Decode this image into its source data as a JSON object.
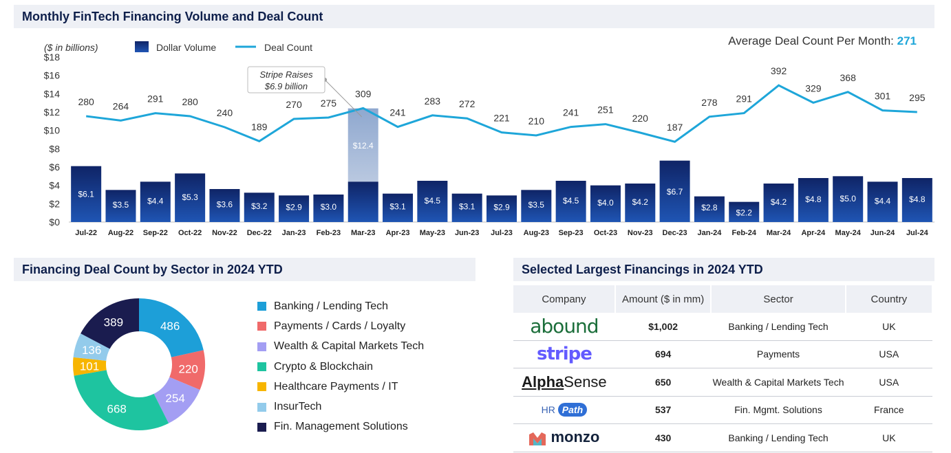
{
  "header_top": "Monthly FinTech Financing Volume and Deal Count",
  "header_left": "Financing Deal Count by Sector in 2024 YTD",
  "header_right": "Selected Largest Financings in 2024 YTD",
  "avg_label": "Average Deal Count Per Month: ",
  "avg_value": "271",
  "colors": {
    "bar_dark": "#0f2466",
    "bar_light": "#1f55b4",
    "line": "#1ea6d9",
    "highlight_bar": "#a3b9d8"
  },
  "chart_data": [
    {
      "type": "bar+line",
      "title": "",
      "y_unit_label": "($ in billions)",
      "legend": [
        "Dollar Volume",
        "Deal Count"
      ],
      "legend_position": "top-left",
      "categories": [
        "Jul-22",
        "Aug-22",
        "Sep-22",
        "Oct-22",
        "Nov-22",
        "Dec-22",
        "Jan-23",
        "Feb-23",
        "Mar-23",
        "Apr-23",
        "May-23",
        "Jun-23",
        "Jul-23",
        "Aug-23",
        "Sep-23",
        "Oct-23",
        "Nov-23",
        "Dec-23",
        "Jan-24",
        "Feb-24",
        "Mar-24",
        "Apr-24",
        "May-24",
        "Jun-24",
        "Jul-24"
      ],
      "series": [
        {
          "name": "Dollar Volume",
          "kind": "bar",
          "values": [
            6.1,
            3.5,
            4.4,
            5.3,
            3.6,
            3.2,
            2.9,
            3.0,
            12.4,
            3.1,
            4.5,
            3.1,
            2.9,
            3.5,
            4.5,
            4.0,
            4.2,
            6.7,
            2.8,
            2.2,
            4.2,
            4.8,
            5.0,
            4.4,
            4.8
          ],
          "labels": [
            "$6.1",
            "$3.5",
            "$4.4",
            "$5.3",
            "$3.6",
            "$3.2",
            "$2.9",
            "$3.0",
            "$12.4",
            "$3.1",
            "$4.5",
            "$3.1",
            "$2.9",
            "$3.5",
            "$4.5",
            "$4.0",
            "$4.2",
            "$6.7",
            "$2.8",
            "$2.2",
            "$4.2",
            "$4.8",
            "$5.0",
            "$4.4",
            "$4.8"
          ]
        },
        {
          "name": "Deal Count",
          "kind": "line",
          "values": [
            280,
            264,
            291,
            280,
            240,
            189,
            270,
            275,
            309,
            241,
            283,
            272,
            221,
            210,
            241,
            251,
            220,
            187,
            278,
            291,
            392,
            329,
            368,
            301,
            295
          ]
        }
      ],
      "highlight": {
        "category": "Mar-23",
        "base_value": 4.4
      },
      "annotation": {
        "category": "Mar-23",
        "line1": "Stripe Raises",
        "line2": "$6.9 billion"
      },
      "y_ticks": [
        "$0",
        "$2",
        "$4",
        "$6",
        "$8",
        "$10",
        "$12",
        "$14",
        "$16",
        "$18"
      ],
      "ylim": [
        0,
        18
      ],
      "grid": false
    },
    {
      "type": "pie",
      "donut": true,
      "labels": [
        "Banking / Lending Tech",
        "Payments / Cards / Loyalty",
        "Wealth & Capital Markets Tech",
        "Crypto & Blockchain",
        "Healthcare Payments / IT",
        "InsurTech",
        "Fin. Management Solutions"
      ],
      "values": [
        486,
        220,
        254,
        668,
        101,
        136,
        389
      ],
      "colors": [
        "#1d9fd8",
        "#f06a6a",
        "#a39ef3",
        "#1ec4a0",
        "#f7b500",
        "#93cbeb",
        "#1a1c4f"
      ],
      "legend_position": "right"
    }
  ],
  "table": {
    "headers": [
      "Company",
      "Amount ($ in mm)",
      "Sector",
      "Country"
    ],
    "rows": [
      {
        "company": "abound",
        "amount": "$1,002",
        "sector": "Banking / Lending Tech",
        "country": "UK"
      },
      {
        "company": "stripe",
        "amount": "694",
        "sector": "Payments",
        "country": "USA"
      },
      {
        "company_a": "Alpha",
        "company_b": "Sense",
        "amount": "650",
        "sector": "Wealth & Capital Markets Tech",
        "country": "USA"
      },
      {
        "company_a": "HR",
        "company_b": "Path",
        "amount": "537",
        "sector": "Fin. Mgmt. Solutions",
        "country": "France"
      },
      {
        "company": "monzo",
        "amount": "430",
        "sector": "Banking / Lending Tech",
        "country": "UK"
      }
    ]
  }
}
